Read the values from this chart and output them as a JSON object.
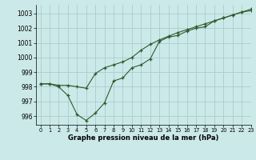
{
  "title": "Graphe pression niveau de la mer (hPa)",
  "background_color": "#cce9e9",
  "grid_color": "#aacccc",
  "line_color": "#2d5a2d",
  "xlim": [
    -0.5,
    23
  ],
  "ylim": [
    995.4,
    1003.6
  ],
  "yticks": [
    996,
    997,
    998,
    999,
    1000,
    1001,
    1002,
    1003
  ],
  "xticks": [
    0,
    1,
    2,
    3,
    4,
    5,
    6,
    7,
    8,
    9,
    10,
    11,
    12,
    13,
    14,
    15,
    16,
    17,
    18,
    19,
    20,
    21,
    22,
    23
  ],
  "series1_x": [
    0,
    1,
    2,
    3,
    4,
    5,
    6,
    7,
    8,
    9,
    10,
    11,
    12,
    13,
    14,
    15,
    16,
    17,
    18,
    19,
    20,
    21,
    22,
    23
  ],
  "series1_y": [
    998.2,
    998.2,
    998.0,
    997.4,
    996.1,
    995.7,
    996.2,
    996.9,
    998.4,
    998.6,
    999.3,
    999.5,
    999.9,
    1001.1,
    1001.4,
    1001.5,
    1001.8,
    1002.0,
    1002.1,
    1002.5,
    1002.7,
    1002.9,
    1003.1,
    1003.2
  ],
  "series2_x": [
    0,
    1,
    2,
    3,
    4,
    5,
    6,
    7,
    8,
    9,
    10,
    11,
    12,
    13,
    14,
    15,
    16,
    17,
    18,
    19,
    20,
    21,
    22,
    23
  ],
  "series2_y": [
    998.2,
    998.2,
    998.1,
    998.1,
    998.0,
    997.9,
    998.9,
    999.3,
    999.5,
    999.7,
    1000.0,
    1000.5,
    1000.9,
    1001.2,
    1001.45,
    1001.7,
    1001.9,
    1002.1,
    1002.3,
    1002.5,
    1002.7,
    1002.9,
    1003.1,
    1003.3
  ],
  "tick_fontsize": 5.5,
  "xtick_fontsize": 4.8,
  "label_fontsize": 6.0,
  "figsize": [
    3.2,
    2.0
  ],
  "dpi": 100
}
